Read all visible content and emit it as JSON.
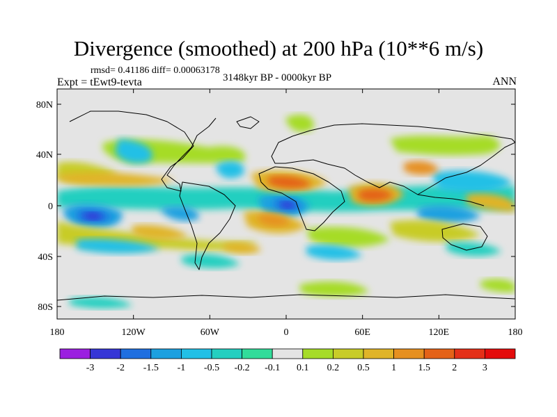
{
  "map": {
    "title": "Divergence (smoothed) at 200 hPa (10**6 m/s)",
    "stats": "rmsd= 0.41186 diff= 0.00063178",
    "experiment": "Expt = tEwt9-tevta",
    "period": "3148kyr BP - 0000kyr BP",
    "season": "ANN",
    "lat_labels": [
      "80N",
      "40N",
      "0",
      "40S",
      "80S"
    ],
    "lon_labels": [
      "180",
      "120W",
      "60W",
      "0",
      "60E",
      "120E",
      "180"
    ],
    "colorbar": {
      "labels": [
        "-3",
        "-2",
        "-1.5",
        "-1",
        "-0.5",
        "-0.2",
        "-0.1",
        "0.1",
        "0.2",
        "0.5",
        "1",
        "1.5",
        "2",
        "3"
      ],
      "colors": [
        "#9b1fe0",
        "#3535d6",
        "#1f6fe0",
        "#1ca0e0",
        "#22c0e6",
        "#24cfc0",
        "#32dc9a",
        "#e4e4e4",
        "#a6dc28",
        "#c8cc28",
        "#e0b428",
        "#e69020",
        "#e46218",
        "#e43018",
        "#e40c0c"
      ]
    }
  }
}
